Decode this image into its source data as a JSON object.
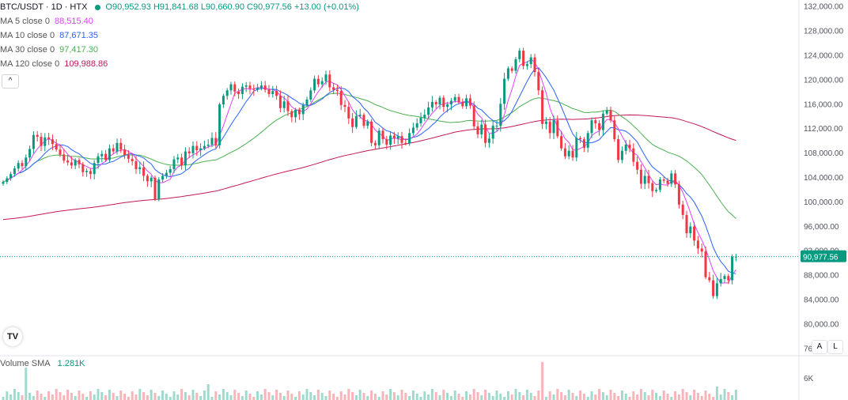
{
  "header": {
    "symbol": "BTC/USDT · 1D · HTX",
    "ohlc": "O90,952.93 H91,841.68 L90,660.90 C90,977.56 +13.00 (+0.01%)"
  },
  "indicators": [
    {
      "label": "MA 5 close 0",
      "value": "88,515.40",
      "color": "#e040fb"
    },
    {
      "label": "MA 10 close 0",
      "value": "87,671.35",
      "color": "#2962ff"
    },
    {
      "label": "MA 30 close 0",
      "value": "97,417.30",
      "color": "#4caf50"
    },
    {
      "label": "MA 120 close 0",
      "value": "109,988.86",
      "color": "#c2185b"
    }
  ],
  "volume": {
    "label": "Volume SMA",
    "value": "1.281K"
  },
  "buttons": {
    "collapse": "^",
    "auto": "A",
    "log": "L",
    "logo": "TV"
  },
  "chart_data": {
    "type": "candlestick",
    "y_axis_ticks": [
      "76,000.00",
      "80,000.00",
      "84,000.00",
      "88,000.00",
      "92,000.00",
      "96,000.00",
      "100,000.00",
      "104,000.00",
      "108,000.00",
      "112,000.00",
      "116,000.00",
      "120,000.00",
      "124,000.00",
      "128,000.00",
      "132,000.00"
    ],
    "volume_ticks": [
      "6K"
    ],
    "last_price": 90977.56,
    "last_price_label": "90,977.56",
    "up_color": "#089981",
    "down_color": "#f23645",
    "ylim": [
      75000,
      133000
    ],
    "close": [
      103200,
      103800,
      104500,
      105400,
      106300,
      105800,
      107200,
      108600,
      110900,
      110600,
      109100,
      110500,
      110200,
      109400,
      108500,
      107700,
      106700,
      106400,
      105900,
      106800,
      106100,
      104800,
      105000,
      104500,
      106300,
      107400,
      107800,
      106800,
      108700,
      108200,
      109600,
      108500,
      107600,
      107000,
      106600,
      105300,
      105600,
      104200,
      103300,
      103900,
      100400,
      103600,
      104200,
      104700,
      105300,
      106900,
      107200,
      105900,
      108200,
      107900,
      109100,
      108400,
      108700,
      109100,
      109300,
      110400,
      109200,
      115900,
      117300,
      118200,
      119200,
      118000,
      117600,
      118800,
      119000,
      118500,
      118300,
      118600,
      119000,
      118300,
      117600,
      118100,
      117300,
      115300,
      116400,
      114800,
      113800,
      115000,
      114300,
      115800,
      116700,
      118200,
      120100,
      119200,
      119700,
      120800,
      118700,
      118300,
      118100,
      115800,
      115500,
      113600,
      112200,
      114000,
      114200,
      112400,
      113100,
      109600,
      109200,
      111600,
      110200,
      109300,
      110800,
      110300,
      110700,
      109600,
      109500,
      111200,
      112100,
      112800,
      113700,
      114200,
      115400,
      116300,
      115900,
      117000,
      115500,
      115900,
      116500,
      117100,
      116300,
      115600,
      116900,
      115700,
      112300,
      111000,
      112600,
      109600,
      110300,
      112400,
      112400,
      116000,
      120100,
      121800,
      121400,
      123300,
      124700,
      122200,
      122500,
      123600,
      121200,
      118200,
      112700,
      113100,
      111200,
      113300,
      110700,
      108700,
      107400,
      108300,
      107200,
      110400,
      110200,
      108800,
      111200,
      113300,
      112800,
      111700,
      114400,
      114900,
      113300,
      110200,
      106800,
      108300,
      109300,
      108700,
      106500,
      105200,
      102900,
      104200,
      103000,
      101700,
      101900,
      103600,
      103400,
      102900,
      104600,
      102800,
      99500,
      97800,
      94800,
      95900,
      93600,
      92300,
      91800,
      87600,
      87100,
      84500,
      86600,
      87300,
      87800,
      87100,
      90950,
      90977
    ]
  }
}
